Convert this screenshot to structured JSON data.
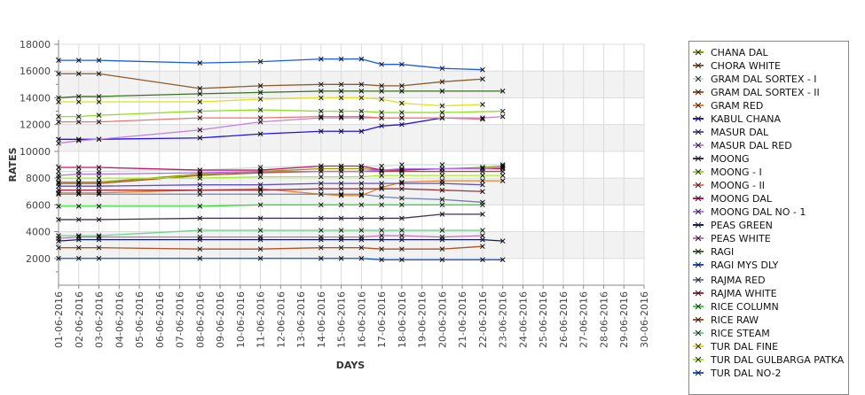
{
  "chart_data": {
    "type": "line",
    "title": "",
    "xlabel": "DAYS",
    "ylabel": "RATES",
    "ylim": [
      0,
      18000
    ],
    "yticks": [
      2000,
      4000,
      6000,
      8000,
      10000,
      12000,
      14000,
      16000,
      18000
    ],
    "x_categories": [
      "01-06-2016",
      "02-06-2016",
      "03-06-2016",
      "04-06-2016",
      "05-06-2016",
      "06-06-2016",
      "07-06-2016",
      "08-06-2016",
      "09-06-2016",
      "10-06-2016",
      "11-06-2016",
      "12-06-2016",
      "13-06-2016",
      "14-06-2016",
      "15-06-2016",
      "16-06-2016",
      "17-06-2016",
      "18-06-2016",
      "19-06-2016",
      "20-06-2016",
      "21-06-2016",
      "22-06-2016",
      "23-06-2016",
      "24-06-2016",
      "25-06-2016",
      "26-06-2016",
      "27-06-2016",
      "28-06-2016",
      "29-06-2016",
      "30-06-2016"
    ],
    "point_days": [
      1,
      2,
      3,
      8,
      11,
      14,
      15,
      16,
      17,
      18,
      20,
      22,
      23
    ],
    "grid": true,
    "legend_position": "right",
    "series": [
      {
        "name": "CHANA DAL",
        "color": "#8ea000",
        "values": [
          7700,
          7700,
          7700,
          8300,
          8500,
          8700,
          8700,
          8700,
          8600,
          8600,
          8700,
          8800,
          8900
        ]
      },
      {
        "name": "CHORA WHITE",
        "color": "#8b5a2b",
        "values": [
          15800,
          15800,
          15800,
          14700,
          14900,
          15000,
          15000,
          15000,
          14900,
          14900,
          15200,
          15400,
          null
        ]
      },
      {
        "name": "GRAM DAL SORTEX  - I",
        "color": "#c8e0d8",
        "values": [
          8500,
          8500,
          8500,
          8600,
          8800,
          8900,
          8900,
          8900,
          8900,
          9000,
          9000,
          null,
          9000
        ]
      },
      {
        "name": "GRAM DAL SORTEX - II",
        "color": "#b0501c",
        "values": [
          7600,
          7600,
          7600,
          8200,
          8400,
          8500,
          8500,
          8500,
          8500,
          8500,
          8500,
          8500,
          8500
        ]
      },
      {
        "name": "GRAM RED",
        "color": "#f08020",
        "values": [
          6900,
          6900,
          6900,
          7100,
          7200,
          6800,
          6700,
          6700,
          7300,
          7700,
          7800,
          7800,
          7800
        ]
      },
      {
        "name": "KABUL CHANA",
        "color": "#2010f0",
        "values": [
          10900,
          10900,
          10900,
          11000,
          11300,
          11500,
          11500,
          11500,
          11900,
          12000,
          12500,
          null,
          null
        ]
      },
      {
        "name": "MASUR DAL",
        "color": "#6050c0",
        "values": [
          7400,
          7400,
          7400,
          7500,
          7500,
          7600,
          7600,
          7600,
          7600,
          7600,
          7600,
          7500,
          null
        ]
      },
      {
        "name": "MASUR DAL RED",
        "color": "#c080e0",
        "values": [
          10600,
          10800,
          10900,
          11600,
          12200,
          12500,
          12500,
          12500,
          12500,
          12500,
          12500,
          12500,
          12600
        ]
      },
      {
        "name": "MOONG",
        "color": "#403050",
        "values": [
          4900,
          4900,
          4900,
          5000,
          5000,
          5000,
          5000,
          5000,
          5000,
          5000,
          5300,
          5300,
          null
        ]
      },
      {
        "name": "MOONG - I",
        "color": "#90e020",
        "values": [
          12600,
          12600,
          12700,
          13000,
          13100,
          13000,
          13000,
          13000,
          12900,
          12900,
          12900,
          null,
          13000
        ]
      },
      {
        "name": "MOONG - II",
        "color": "#f07070",
        "values": [
          12200,
          12200,
          12200,
          12500,
          12500,
          12600,
          12600,
          12600,
          12500,
          12500,
          12500,
          12400,
          null
        ]
      },
      {
        "name": "MOONG DAL",
        "color": "#d0106a",
        "values": [
          8800,
          8800,
          8800,
          8600,
          8600,
          8900,
          8900,
          8900,
          8600,
          8600,
          8700,
          8700,
          8700
        ]
      },
      {
        "name": "MOONG DAL NO - 1",
        "color": "#b070f0",
        "values": [
          8200,
          8300,
          8300,
          8400,
          8500,
          8500,
          8500,
          8500,
          8600,
          8700,
          8700,
          8700,
          8800
        ]
      },
      {
        "name": "PEAS GREEN",
        "color": "#102060",
        "values": [
          3300,
          3400,
          3400,
          3400,
          3400,
          3400,
          3400,
          3400,
          3400,
          3400,
          3400,
          3400,
          3300
        ]
      },
      {
        "name": "PEAS WHITE",
        "color": "#c070c0",
        "values": [
          3500,
          3600,
          3600,
          3600,
          3600,
          3600,
          3600,
          3600,
          3700,
          3700,
          3600,
          3700,
          null
        ]
      },
      {
        "name": "RAGI",
        "color": "#3a7020",
        "values": [
          14000,
          14100,
          14100,
          14300,
          14400,
          14500,
          14500,
          14500,
          14500,
          14500,
          14500,
          null,
          14500
        ]
      },
      {
        "name": "RAGI MYS DLY",
        "color": "#1050e0",
        "values": [
          2000,
          2000,
          2000,
          2000,
          2000,
          2000,
          2000,
          2000,
          1900,
          1900,
          1900,
          1900,
          1900
        ]
      },
      {
        "name": "RAJMA RED",
        "color": "#7080b0",
        "values": [
          6800,
          6800,
          6800,
          6800,
          6800,
          6800,
          6800,
          6800,
          6600,
          6500,
          6400,
          6200,
          null
        ]
      },
      {
        "name": "RAJMA WHITE",
        "color": "#a03040",
        "values": [
          7100,
          7100,
          7100,
          7100,
          7100,
          7200,
          7200,
          7200,
          7200,
          7200,
          7100,
          7000,
          null
        ]
      },
      {
        "name": "RICE COLUMN",
        "color": "#30e030",
        "values": [
          5900,
          5900,
          5900,
          5900,
          6000,
          6000,
          6000,
          6000,
          6000,
          6000,
          6000,
          6000,
          null
        ]
      },
      {
        "name": "RICE RAW",
        "color": "#b05020",
        "values": [
          2800,
          2800,
          2800,
          2700,
          2700,
          2800,
          2800,
          2800,
          2700,
          2700,
          2700,
          2900,
          null
        ]
      },
      {
        "name": "RICE STEAM",
        "color": "#70d090",
        "values": [
          3700,
          3700,
          3700,
          4100,
          4100,
          4100,
          4100,
          4100,
          4100,
          4100,
          4100,
          4100,
          null
        ]
      },
      {
        "name": "TUR DAL FINE",
        "color": "#e0e020",
        "values": [
          13700,
          13700,
          13700,
          13700,
          13900,
          14000,
          14000,
          14000,
          13900,
          13600,
          13400,
          13500,
          null
        ]
      },
      {
        "name": "TUR DAL GULBARGA PATKA",
        "color": "#a0f020",
        "values": [
          8000,
          8000,
          8000,
          8000,
          8100,
          8100,
          8100,
          8100,
          8200,
          8200,
          8200,
          8200,
          8200
        ]
      },
      {
        "name": "TUR DAL NO-2",
        "color": "#1a5ae8",
        "values": [
          16800,
          16800,
          16800,
          16600,
          16700,
          16900,
          16900,
          16900,
          16500,
          16500,
          16200,
          16100,
          null
        ]
      }
    ]
  }
}
